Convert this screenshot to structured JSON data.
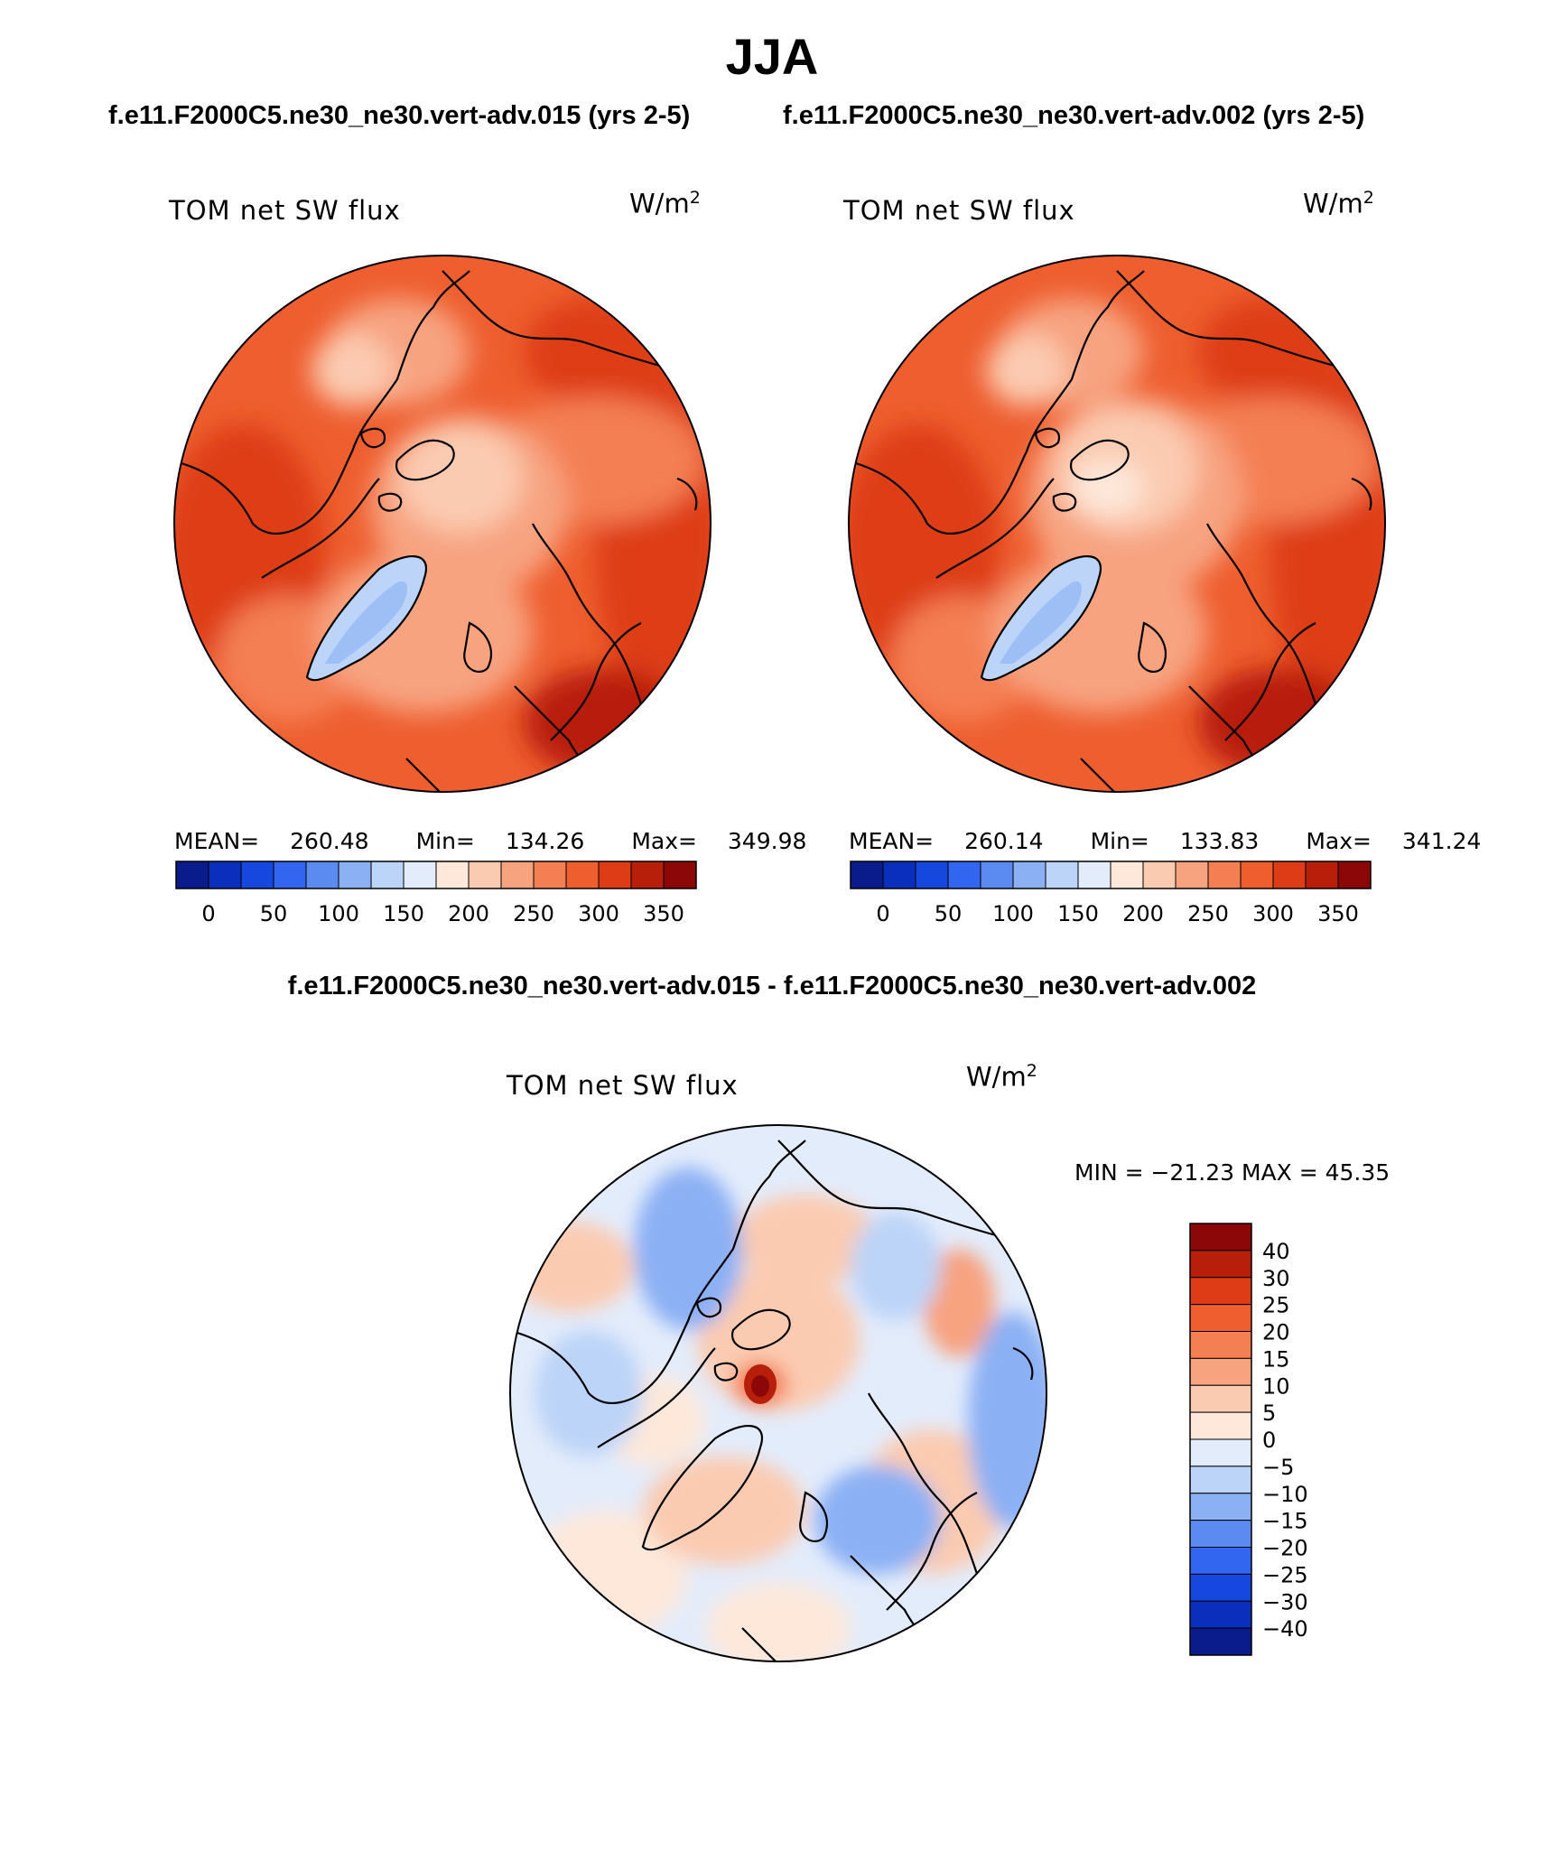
{
  "season": "JJA",
  "case_titles": [
    "f.e11.F2000C5.ne30_ne30.vert-adv.015 (yrs 2-5)",
    "f.e11.F2000C5.ne30_ne30.vert-adv.002 (yrs 2-5)"
  ],
  "diff_title": "f.e11.F2000C5.ne30_ne30.vert-adv.015 - f.e11.F2000C5.ne30_ne30.vert-adv.002",
  "chart_data": [
    {
      "type": "heatmap",
      "projection": "north-polar-stereographic",
      "title": "TOM net SW flux",
      "unit_base": "W/m",
      "unit_exp": "2",
      "stats": {
        "mean_label": "MEAN=",
        "mean": "260.48",
        "min_label": "Min=",
        "min": "134.26",
        "max_label": "Max=",
        "max": "349.98"
      },
      "colorbar": {
        "orientation": "horizontal",
        "levels": [
          0,
          25,
          50,
          75,
          100,
          125,
          150,
          175,
          200,
          225,
          250,
          275,
          300,
          325,
          350
        ],
        "tick_labels": [
          "0",
          "50",
          "100",
          "150",
          "200",
          "250",
          "300",
          "350"
        ],
        "colors": [
          "#0a1c8c",
          "#0b2fbd",
          "#1648e0",
          "#3366f0",
          "#5b8af0",
          "#8bb0f4",
          "#bcd4f8",
          "#e3ecfb",
          "#fde8da",
          "#fbcbb1",
          "#f7a380",
          "#f47f53",
          "#ee5e2f",
          "#de3c16",
          "#b81f0b",
          "#8c0808"
        ]
      }
    },
    {
      "type": "heatmap",
      "projection": "north-polar-stereographic",
      "title": "TOM net SW flux",
      "unit_base": "W/m",
      "unit_exp": "2",
      "stats": {
        "mean_label": "MEAN=",
        "mean": "260.14",
        "min_label": "Min=",
        "min": "133.83",
        "max_label": "Max=",
        "max": "341.24"
      },
      "colorbar": {
        "orientation": "horizontal",
        "levels": [
          0,
          25,
          50,
          75,
          100,
          125,
          150,
          175,
          200,
          225,
          250,
          275,
          300,
          325,
          350
        ],
        "tick_labels": [
          "0",
          "50",
          "100",
          "150",
          "200",
          "250",
          "300",
          "350"
        ],
        "colors": [
          "#0a1c8c",
          "#0b2fbd",
          "#1648e0",
          "#3366f0",
          "#5b8af0",
          "#8bb0f4",
          "#bcd4f8",
          "#e3ecfb",
          "#fde8da",
          "#fbcbb1",
          "#f7a380",
          "#f47f53",
          "#ee5e2f",
          "#de3c16",
          "#b81f0b",
          "#8c0808"
        ]
      }
    },
    {
      "type": "heatmap",
      "projection": "north-polar-stereographic",
      "title": "TOM net SW flux",
      "unit_base": "W/m",
      "unit_exp": "2",
      "minmax": "MIN = −21.23 MAX =   45.35",
      "colorbar": {
        "orientation": "vertical",
        "tick_labels": [
          "40",
          "30",
          "25",
          "20",
          "15",
          "10",
          "5",
          "0",
          "−5",
          "−10",
          "−15",
          "−20",
          "−25",
          "−30",
          "−40"
        ],
        "colors": [
          "#8c0808",
          "#b81f0b",
          "#de3c16",
          "#ee5e2f",
          "#f47f53",
          "#f7a380",
          "#fbcbb1",
          "#fde8da",
          "#e3ecfb",
          "#bcd4f8",
          "#8bb0f4",
          "#5b8af0",
          "#3366f0",
          "#1648e0",
          "#0b2fbd",
          "#0a1c8c"
        ]
      }
    }
  ]
}
